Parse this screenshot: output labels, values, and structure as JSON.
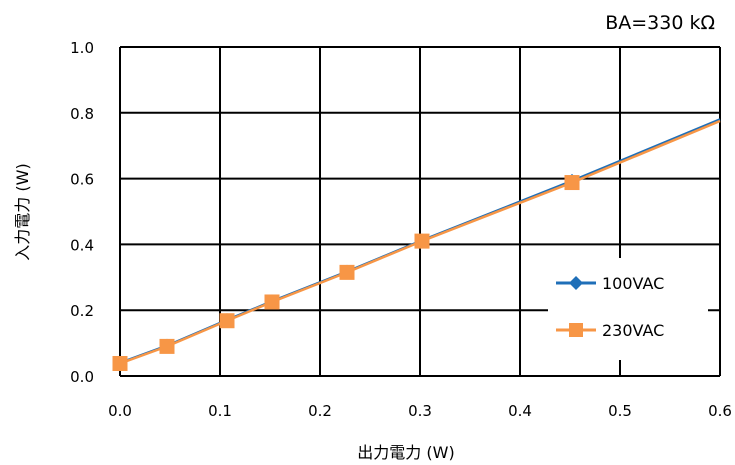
{
  "chart_data": {
    "type": "line",
    "title": "",
    "annotation": "BA=330 kΩ",
    "xlabel": "出力電力 (W)",
    "ylabel": "入力電力 (W)",
    "xlim": [
      0,
      0.6
    ],
    "ylim": [
      0,
      1.0
    ],
    "xticks": [
      "0.0",
      "0.1",
      "0.2",
      "0.3",
      "0.4",
      "0.5",
      "0.6"
    ],
    "yticks": [
      "0.0",
      "0.2",
      "0.4",
      "0.6",
      "0.8",
      "1.0"
    ],
    "grid": true,
    "legend_position": "bottom-right",
    "series": [
      {
        "name": "100VAC",
        "color": "#1f6fb8",
        "marker": "diamond",
        "points": [
          [
            0.0,
            0.04
          ],
          [
            0.047,
            0.092
          ],
          [
            0.107,
            0.17
          ],
          [
            0.152,
            0.227
          ],
          [
            0.227,
            0.317
          ],
          [
            0.302,
            0.412
          ],
          [
            0.452,
            0.593
          ],
          [
            0.6,
            0.78
          ]
        ]
      },
      {
        "name": "230VAC",
        "color": "#f79646",
        "marker": "square",
        "points": [
          [
            0.0,
            0.038
          ],
          [
            0.047,
            0.09
          ],
          [
            0.107,
            0.168
          ],
          [
            0.152,
            0.225
          ],
          [
            0.227,
            0.315
          ],
          [
            0.302,
            0.41
          ],
          [
            0.452,
            0.588
          ],
          [
            0.6,
            0.775
          ]
        ]
      }
    ]
  }
}
